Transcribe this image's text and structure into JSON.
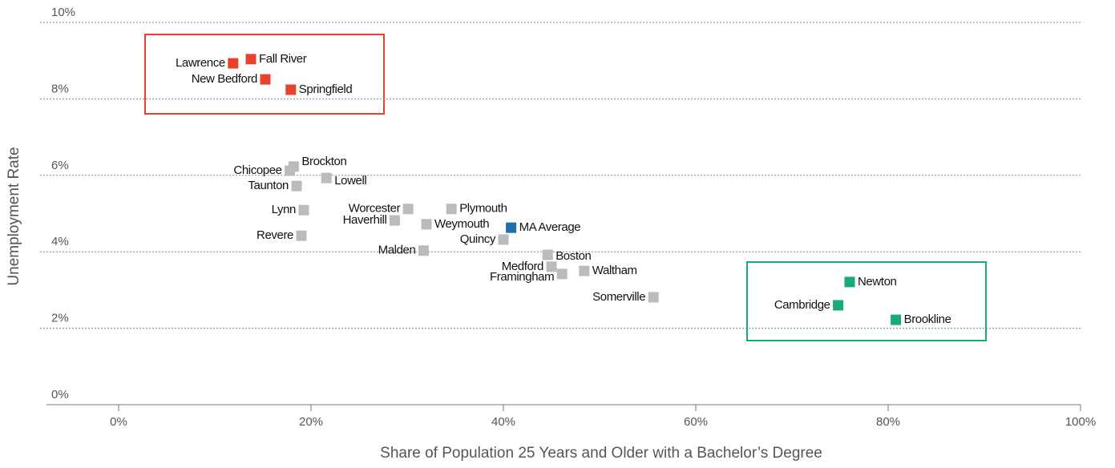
{
  "chart_data": {
    "type": "scatter",
    "xlabel": "Share of Population 25 Years and Older with a Bachelor’s Degree",
    "ylabel": "Unemployment Rate",
    "xlim": [
      -7.5,
      100
    ],
    "ylim": [
      0,
      10
    ],
    "xticks": [
      {
        "value": 0,
        "label": "0%"
      },
      {
        "value": 20,
        "label": "20%"
      },
      {
        "value": 40,
        "label": "40%"
      },
      {
        "value": 60,
        "label": "60%"
      },
      {
        "value": 80,
        "label": "80%"
      },
      {
        "value": 100,
        "label": "100%"
      }
    ],
    "yticks": [
      {
        "value": 0,
        "label": "0%"
      },
      {
        "value": 2,
        "label": "2%"
      },
      {
        "value": 4,
        "label": "4%"
      },
      {
        "value": 6,
        "label": "6%"
      },
      {
        "value": 8,
        "label": "8%"
      },
      {
        "value": 10,
        "label": "10%"
      }
    ],
    "grid": true,
    "points": [
      {
        "name": "Lawrence",
        "x": 11.9,
        "y": 8.93,
        "color": "#e8412c"
      },
      {
        "name": "Fall River",
        "x": 13.75,
        "y": 9.04,
        "color": "#e8412c"
      },
      {
        "name": "New Bedford",
        "x": 15.25,
        "y": 8.51,
        "color": "#e8412c"
      },
      {
        "name": "Springfield",
        "x": 17.9,
        "y": 8.24,
        "color": "#e8412c"
      },
      {
        "name": "Chicopee",
        "x": 17.8,
        "y": 6.12,
        "color": "#bbbbbb"
      },
      {
        "name": "Brockton",
        "x": 18.2,
        "y": 6.23,
        "color": "#bbbbbb"
      },
      {
        "name": "Lowell",
        "x": 21.6,
        "y": 5.93,
        "color": "#bbbbbb"
      },
      {
        "name": "Taunton",
        "x": 18.5,
        "y": 5.72,
        "color": "#bbbbbb"
      },
      {
        "name": "Lynn",
        "x": 19.25,
        "y": 5.09,
        "color": "#bbbbbb"
      },
      {
        "name": "Revere",
        "x": 19,
        "y": 4.42,
        "color": "#bbbbbb"
      },
      {
        "name": "Worcester",
        "x": 30.1,
        "y": 5.12,
        "color": "#bbbbbb"
      },
      {
        "name": "Haverhill",
        "x": 28.7,
        "y": 4.82,
        "color": "#bbbbbb"
      },
      {
        "name": "Plymouth",
        "x": 34.6,
        "y": 5.12,
        "color": "#bbbbbb"
      },
      {
        "name": "Weymouth",
        "x": 32,
        "y": 4.72,
        "color": "#bbbbbb"
      },
      {
        "name": "MA Average",
        "x": 40.8,
        "y": 4.63,
        "color": "#1f6fb0"
      },
      {
        "name": "Quincy",
        "x": 40,
        "y": 4.32,
        "color": "#bbbbbb"
      },
      {
        "name": "Malden",
        "x": 31.7,
        "y": 4.03,
        "color": "#bbbbbb"
      },
      {
        "name": "Boston",
        "x": 44.6,
        "y": 3.92,
        "color": "#bbbbbb"
      },
      {
        "name": "Medford",
        "x": 45,
        "y": 3.61,
        "color": "#bbbbbb"
      },
      {
        "name": "Waltham",
        "x": 48.4,
        "y": 3.5,
        "color": "#bbbbbb"
      },
      {
        "name": "Framingham",
        "x": 46.1,
        "y": 3.42,
        "color": "#bbbbbb"
      },
      {
        "name": "Somerville",
        "x": 55.6,
        "y": 2.81,
        "color": "#bbbbbb"
      },
      {
        "name": "Newton",
        "x": 76,
        "y": 3.21,
        "color": "#1aaa78"
      },
      {
        "name": "Cambridge",
        "x": 74.8,
        "y": 2.6,
        "color": "#1aaa78"
      },
      {
        "name": "Brookline",
        "x": 80.8,
        "y": 2.22,
        "color": "#1aaa78"
      }
    ]
  }
}
